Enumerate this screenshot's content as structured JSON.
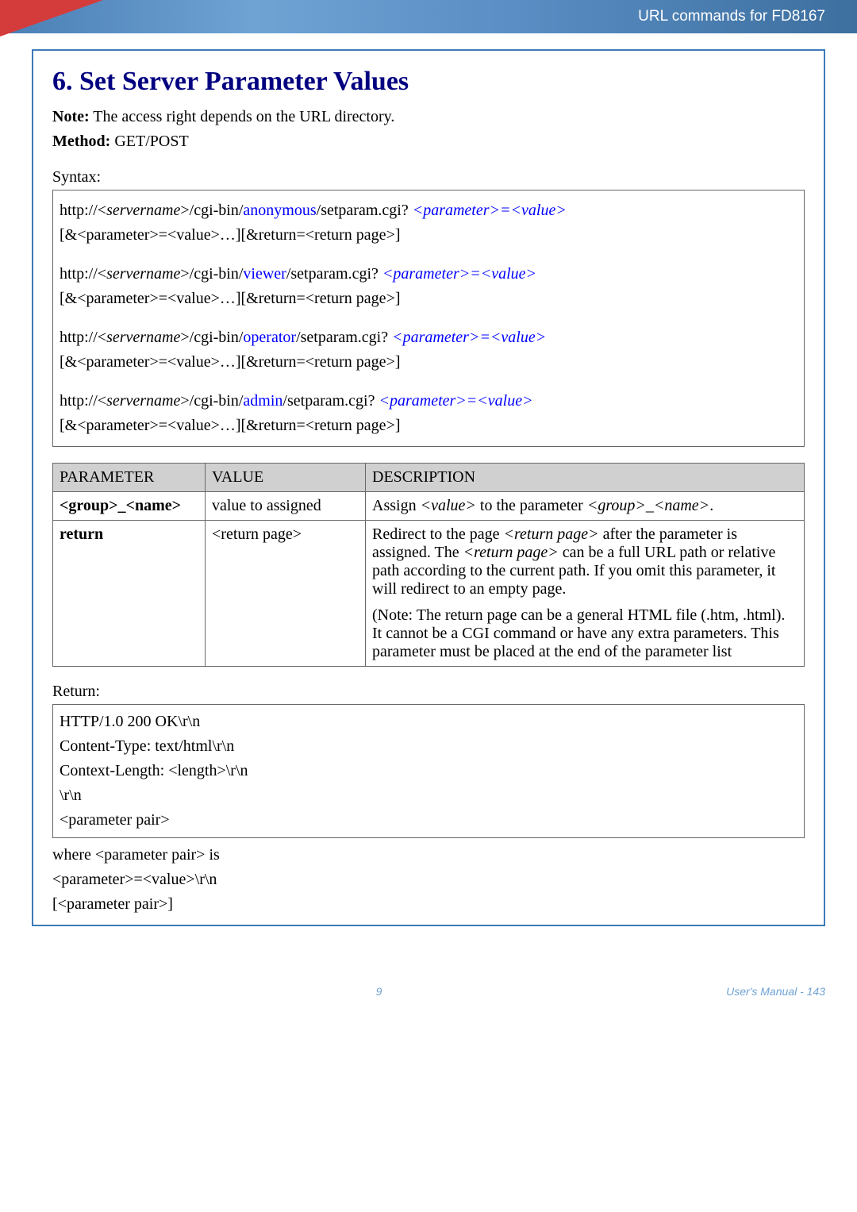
{
  "header": {
    "title": "URL commands for FD8167"
  },
  "section": {
    "heading": "6. Set Server Parameter Values",
    "note_label": "Note:",
    "note_text": " The access right depends on the URL directory.",
    "method_label": "Method:",
    "method_text": " GET/POST"
  },
  "syntax": {
    "label": "Syntax:",
    "lines": [
      [
        {
          "t": "http://<",
          "i": false,
          "c": null
        },
        {
          "t": "servername",
          "i": true,
          "c": null
        },
        {
          "t": ">/cgi-bin/",
          "i": false,
          "c": null
        },
        {
          "t": "anonymous",
          "i": false,
          "c": "#0000ff"
        },
        {
          "t": "/setparam.cgi? ",
          "i": false,
          "c": null
        },
        {
          "t": "<parameter>=<value>",
          "i": true,
          "c": "#0000ff"
        }
      ],
      [
        {
          "t": "[&<parameter>=<value>…][&return=<return page>]",
          "i": false,
          "c": null
        }
      ],
      "SEP",
      [
        {
          "t": "http://<",
          "i": false,
          "c": null
        },
        {
          "t": "servername",
          "i": true,
          "c": null
        },
        {
          "t": ">/cgi-bin/",
          "i": false,
          "c": null
        },
        {
          "t": "viewer",
          "i": false,
          "c": "#0000ff"
        },
        {
          "t": "/setparam.cgi? ",
          "i": false,
          "c": null
        },
        {
          "t": "<parameter>=<value>",
          "i": true,
          "c": "#0000ff"
        }
      ],
      [
        {
          "t": "[&<parameter>=<value>…][&return=<return page>]",
          "i": false,
          "c": null
        }
      ],
      "SEP",
      [
        {
          "t": "http://<",
          "i": false,
          "c": null
        },
        {
          "t": "servername",
          "i": true,
          "c": null
        },
        {
          "t": ">/cgi-bin/",
          "i": false,
          "c": null
        },
        {
          "t": "operator",
          "i": false,
          "c": "#0000ff"
        },
        {
          "t": "/setparam.cgi? ",
          "i": false,
          "c": null
        },
        {
          "t": "<parameter>=<value>",
          "i": true,
          "c": "#0000ff"
        }
      ],
      [
        {
          "t": "[&<parameter>=<value>…][&return=<return page>]",
          "i": false,
          "c": null
        }
      ],
      "SEP",
      [
        {
          "t": "http://<",
          "i": false,
          "c": null
        },
        {
          "t": "servername",
          "i": true,
          "c": null
        },
        {
          "t": ">/cgi-bin/",
          "i": false,
          "c": null
        },
        {
          "t": "admin",
          "i": false,
          "c": "#0000ff"
        },
        {
          "t": "/setparam.cgi? ",
          "i": false,
          "c": null
        },
        {
          "t": "<parameter>=<value>",
          "i": true,
          "c": "#0000ff"
        }
      ],
      [
        {
          "t": "[&<parameter>=<value>…][&return=<return page>]",
          "i": false,
          "c": null
        }
      ]
    ]
  },
  "table": {
    "headers": [
      "PARAMETER",
      "VALUE",
      "DESCRIPTION"
    ],
    "rows": [
      {
        "param_parts": [
          {
            "t": "<group>_<name>",
            "b": true
          }
        ],
        "value": "value to assigned",
        "desc_parts": [
          [
            {
              "t": "Assign "
            },
            {
              "t": "<value>",
              "i": true
            },
            {
              "t": " to the parameter "
            },
            {
              "t": "<group>_<name>",
              "i": true
            },
            {
              "t": "."
            }
          ]
        ]
      },
      {
        "param_parts": [
          {
            "t": "return",
            "b": true
          }
        ],
        "value": "<return page>",
        "desc_parts": [
          [
            {
              "t": "Redirect to the page "
            },
            {
              "t": "<return page>",
              "i": true
            },
            {
              "t": " after the parameter is assigned. The "
            },
            {
              "t": "<return page>",
              "i": true
            },
            {
              "t": " can be a full URL path or relative path according to the current path. If you omit this parameter, it will redirect to an empty page."
            }
          ],
          [
            {
              "t": "(Note: The return page can be a general HTML file (.htm, .html). It cannot be a CGI command or have any extra parameters. This parameter must be placed at the end of the parameter list"
            }
          ]
        ]
      }
    ]
  },
  "return_section": {
    "label": "Return:",
    "lines": [
      "HTTP/1.0 200 OK\\r\\n",
      "Content-Type: text/html\\r\\n",
      "Context-Length: <length>\\r\\n",
      "\\r\\n",
      "<parameter pair>"
    ],
    "below": [
      "where <parameter pair> is",
      "<parameter>=<value>\\r\\n",
      "[<parameter pair>]"
    ]
  },
  "footer": {
    "page_num": "9",
    "right": "User's Manual - 143"
  },
  "colors": {
    "heading": "#000080",
    "link_blue": "#0000ff",
    "header_grad_start": "#4a7fb5",
    "border_blue": "#3d7bb8",
    "th_bg": "#d0d0d0"
  }
}
